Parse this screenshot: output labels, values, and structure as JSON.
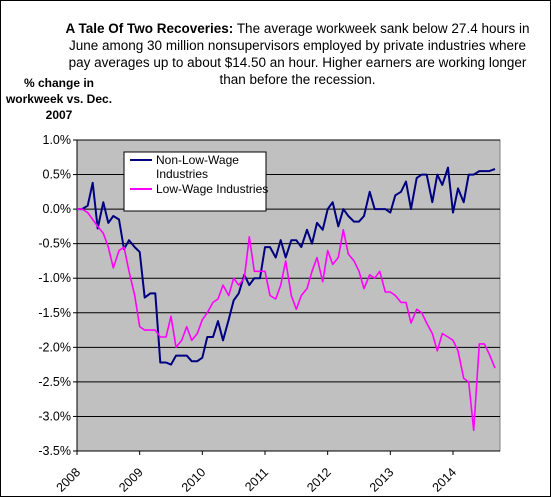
{
  "chart_data": {
    "type": "line",
    "title_bold": "A Tale Of Two Recoveries:",
    "subtitle": "The average workweek sank below 27.4 hours in June among 30 million nonsupervisors employed by private industries where pay averages up to about $14.50 an hour. Higher earners are working longer than before the recession.",
    "ylabel": "% change in workweek vs. Dec. 2007",
    "xlabel": "",
    "ylim": [
      -3.5,
      1.0
    ],
    "yticks": [
      "1.0%",
      "0.5%",
      "0.0%",
      "-0.5%",
      "-1.0%",
      "-1.5%",
      "-2.0%",
      "-2.5%",
      "-3.0%",
      "-3.5%"
    ],
    "ytick_values": [
      1.0,
      0.5,
      0.0,
      -0.5,
      -1.0,
      -1.5,
      -2.0,
      -2.5,
      -3.0,
      -3.5
    ],
    "xticks": [
      "2008",
      "2009",
      "2010",
      "2011",
      "2012",
      "2013",
      "2014"
    ],
    "xtick_values": [
      2008,
      2009,
      2010,
      2011,
      2012,
      2013,
      2014
    ],
    "xlim": [
      2008,
      2014.75
    ],
    "grid": true,
    "legend_position": "top-left",
    "series": [
      {
        "name": "Non-Low-Wage Industries",
        "color": "#000080",
        "x": [
          2008.0,
          2008.08,
          2008.17,
          2008.25,
          2008.33,
          2008.42,
          2008.5,
          2008.58,
          2008.67,
          2008.75,
          2008.83,
          2008.92,
          2009.0,
          2009.08,
          2009.17,
          2009.25,
          2009.33,
          2009.42,
          2009.5,
          2009.58,
          2009.67,
          2009.75,
          2009.83,
          2009.92,
          2010.0,
          2010.08,
          2010.17,
          2010.25,
          2010.33,
          2010.42,
          2010.5,
          2010.58,
          2010.67,
          2010.75,
          2010.83,
          2010.92,
          2011.0,
          2011.08,
          2011.17,
          2011.25,
          2011.33,
          2011.42,
          2011.5,
          2011.58,
          2011.67,
          2011.75,
          2011.83,
          2011.92,
          2012.0,
          2012.08,
          2012.17,
          2012.25,
          2012.33,
          2012.42,
          2012.5,
          2012.58,
          2012.67,
          2012.75,
          2012.83,
          2012.92,
          2013.0,
          2013.08,
          2013.17,
          2013.25,
          2013.33,
          2013.42,
          2013.5,
          2013.58,
          2013.67,
          2013.75,
          2013.83,
          2013.92,
          2014.0,
          2014.08,
          2014.17,
          2014.25,
          2014.33,
          2014.42,
          2014.5,
          2014.58,
          2014.67
        ],
        "values": [
          0.0,
          0.0,
          0.05,
          0.38,
          -0.28,
          0.1,
          -0.2,
          -0.1,
          -0.15,
          -0.58,
          -0.45,
          -0.55,
          -0.62,
          -1.28,
          -1.22,
          -1.22,
          -2.22,
          -2.22,
          -2.25,
          -2.12,
          -2.12,
          -2.12,
          -2.2,
          -2.2,
          -2.15,
          -1.85,
          -1.85,
          -1.62,
          -1.9,
          -1.6,
          -1.32,
          -1.22,
          -0.95,
          -1.1,
          -1.0,
          -1.0,
          -0.55,
          -0.55,
          -0.7,
          -0.45,
          -0.7,
          -0.45,
          -0.45,
          -0.55,
          -0.3,
          -0.5,
          -0.2,
          -0.3,
          0.0,
          0.1,
          -0.25,
          0.0,
          -0.1,
          -0.18,
          -0.18,
          -0.1,
          0.25,
          0.0,
          0.0,
          0.0,
          -0.05,
          0.2,
          0.25,
          0.4,
          0.0,
          0.45,
          0.5,
          0.5,
          0.1,
          0.5,
          0.35,
          0.6,
          -0.05,
          0.3,
          0.1,
          0.5,
          0.5,
          0.55,
          0.55,
          0.55,
          0.58
        ]
      },
      {
        "name": "Low-Wage Industries",
        "color": "#ff00ff",
        "x": [
          2008.0,
          2008.08,
          2008.17,
          2008.25,
          2008.33,
          2008.42,
          2008.5,
          2008.58,
          2008.67,
          2008.75,
          2008.83,
          2008.92,
          2009.0,
          2009.08,
          2009.17,
          2009.25,
          2009.33,
          2009.42,
          2009.5,
          2009.58,
          2009.67,
          2009.75,
          2009.83,
          2009.92,
          2010.0,
          2010.08,
          2010.17,
          2010.25,
          2010.33,
          2010.42,
          2010.5,
          2010.58,
          2010.67,
          2010.75,
          2010.83,
          2010.92,
          2011.0,
          2011.08,
          2011.17,
          2011.25,
          2011.33,
          2011.42,
          2011.5,
          2011.58,
          2011.67,
          2011.75,
          2011.83,
          2011.92,
          2012.0,
          2012.08,
          2012.17,
          2012.25,
          2012.33,
          2012.42,
          2012.5,
          2012.58,
          2012.67,
          2012.75,
          2012.83,
          2012.92,
          2013.0,
          2013.08,
          2013.17,
          2013.25,
          2013.33,
          2013.42,
          2013.5,
          2013.58,
          2013.67,
          2013.75,
          2013.83,
          2013.92,
          2014.0,
          2014.08,
          2014.17,
          2014.25,
          2014.33,
          2014.42,
          2014.5,
          2014.58,
          2014.67
        ],
        "values": [
          0.0,
          0.0,
          -0.05,
          -0.15,
          -0.25,
          -0.35,
          -0.55,
          -0.85,
          -0.6,
          -0.55,
          -0.9,
          -1.25,
          -1.7,
          -1.75,
          -1.75,
          -1.75,
          -1.85,
          -1.85,
          -1.55,
          -2.0,
          -1.9,
          -1.7,
          -1.9,
          -1.8,
          -1.6,
          -1.5,
          -1.35,
          -1.3,
          -1.1,
          -1.25,
          -1.0,
          -1.1,
          -1.0,
          -0.4,
          -0.9,
          -0.9,
          -0.9,
          -1.25,
          -1.3,
          -1.1,
          -0.75,
          -1.25,
          -1.45,
          -1.25,
          -1.15,
          -0.9,
          -0.7,
          -1.05,
          -0.6,
          -0.8,
          -0.7,
          -0.3,
          -0.65,
          -0.75,
          -0.9,
          -1.15,
          -0.95,
          -1.0,
          -0.9,
          -1.2,
          -1.2,
          -1.25,
          -1.35,
          -1.35,
          -1.65,
          -1.45,
          -1.5,
          -1.65,
          -1.8,
          -2.05,
          -1.8,
          -1.85,
          -1.9,
          -2.05,
          -2.45,
          -2.5,
          -3.2,
          -1.95,
          -1.95,
          -2.1,
          -2.3
        ]
      }
    ]
  }
}
